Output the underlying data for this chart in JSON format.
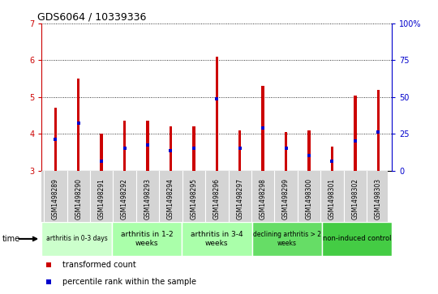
{
  "title": "GDS6064 / 10339336",
  "samples": [
    "GSM1498289",
    "GSM1498290",
    "GSM1498291",
    "GSM1498292",
    "GSM1498293",
    "GSM1498294",
    "GSM1498295",
    "GSM1498296",
    "GSM1498297",
    "GSM1498298",
    "GSM1498299",
    "GSM1498300",
    "GSM1498301",
    "GSM1498302",
    "GSM1498303"
  ],
  "transformed_count": [
    4.7,
    5.5,
    4.0,
    4.35,
    4.35,
    4.2,
    4.2,
    6.1,
    4.1,
    5.3,
    4.05,
    4.1,
    3.65,
    5.05,
    5.2
  ],
  "percentile_rank": [
    3.85,
    4.3,
    3.25,
    3.6,
    3.7,
    3.55,
    3.6,
    4.95,
    3.6,
    4.15,
    3.6,
    3.4,
    3.25,
    3.8,
    4.05
  ],
  "ylim": [
    3.0,
    7.0
  ],
  "y2lim": [
    0,
    100
  ],
  "yticks": [
    3,
    4,
    5,
    6,
    7
  ],
  "y2ticks": [
    0,
    25,
    50,
    75,
    100
  ],
  "y2ticklabels": [
    "0",
    "25",
    "50",
    "75",
    "100%"
  ],
  "bar_color": "#cc0000",
  "dot_color": "#0000cc",
  "bar_width": 0.12,
  "groups": [
    {
      "label": "arthritis in 0-3 days",
      "start": 0,
      "end": 3,
      "color": "#ccffcc",
      "fontsize": 5.5
    },
    {
      "label": "arthritis in 1-2\nweeks",
      "start": 3,
      "end": 6,
      "color": "#aaffaa",
      "fontsize": 6.5
    },
    {
      "label": "arthritis in 3-4\nweeks",
      "start": 6,
      "end": 9,
      "color": "#aaffaa",
      "fontsize": 6.5
    },
    {
      "label": "declining arthritis > 2\nweeks",
      "start": 9,
      "end": 12,
      "color": "#66dd66",
      "fontsize": 5.5
    },
    {
      "label": "non-induced control",
      "start": 12,
      "end": 15,
      "color": "#44cc44",
      "fontsize": 6.0
    }
  ],
  "legend_items": [
    {
      "label": "transformed count",
      "color": "#cc0000"
    },
    {
      "label": "percentile rank within the sample",
      "color": "#0000cc"
    }
  ],
  "tick_color_left": "#cc0000",
  "tick_color_right": "#0000cc",
  "sample_box_color": "#cccccc",
  "grid_color": "#000000"
}
